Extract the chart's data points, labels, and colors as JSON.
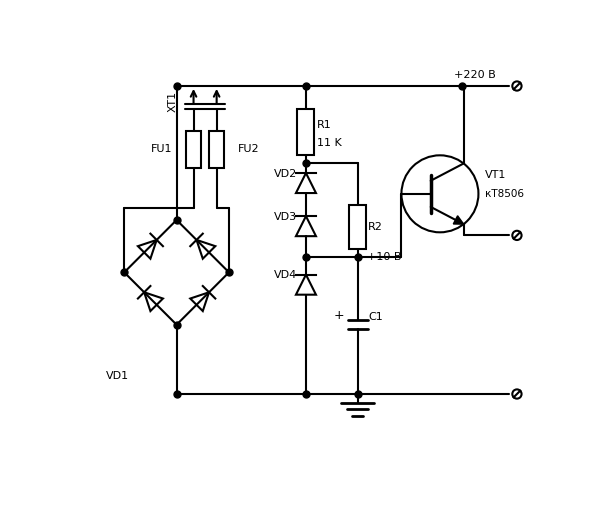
{
  "bg_color": "#ffffff",
  "line_color": "#000000",
  "lw": 1.5,
  "figsize": [
    6.0,
    5.05
  ],
  "dpi": 100,
  "xlim": [
    0,
    6.0
  ],
  "ylim": [
    0,
    5.05
  ],
  "components": {
    "XT1_label": "XT1",
    "FU1_label": "FU1",
    "FU2_label": "FU2",
    "VD1_label": "VD1",
    "VD2_label": "VD2",
    "VD3_label": "VD3",
    "VD4_label": "VD4",
    "R1_label": "R1",
    "R1_val": "11 K",
    "R2_label": "R2",
    "C1_label": "C1",
    "VT1_label": "VT1",
    "VT1_type": "кТ8506",
    "plus220": "+220 В",
    "plus10": "+10 В"
  }
}
